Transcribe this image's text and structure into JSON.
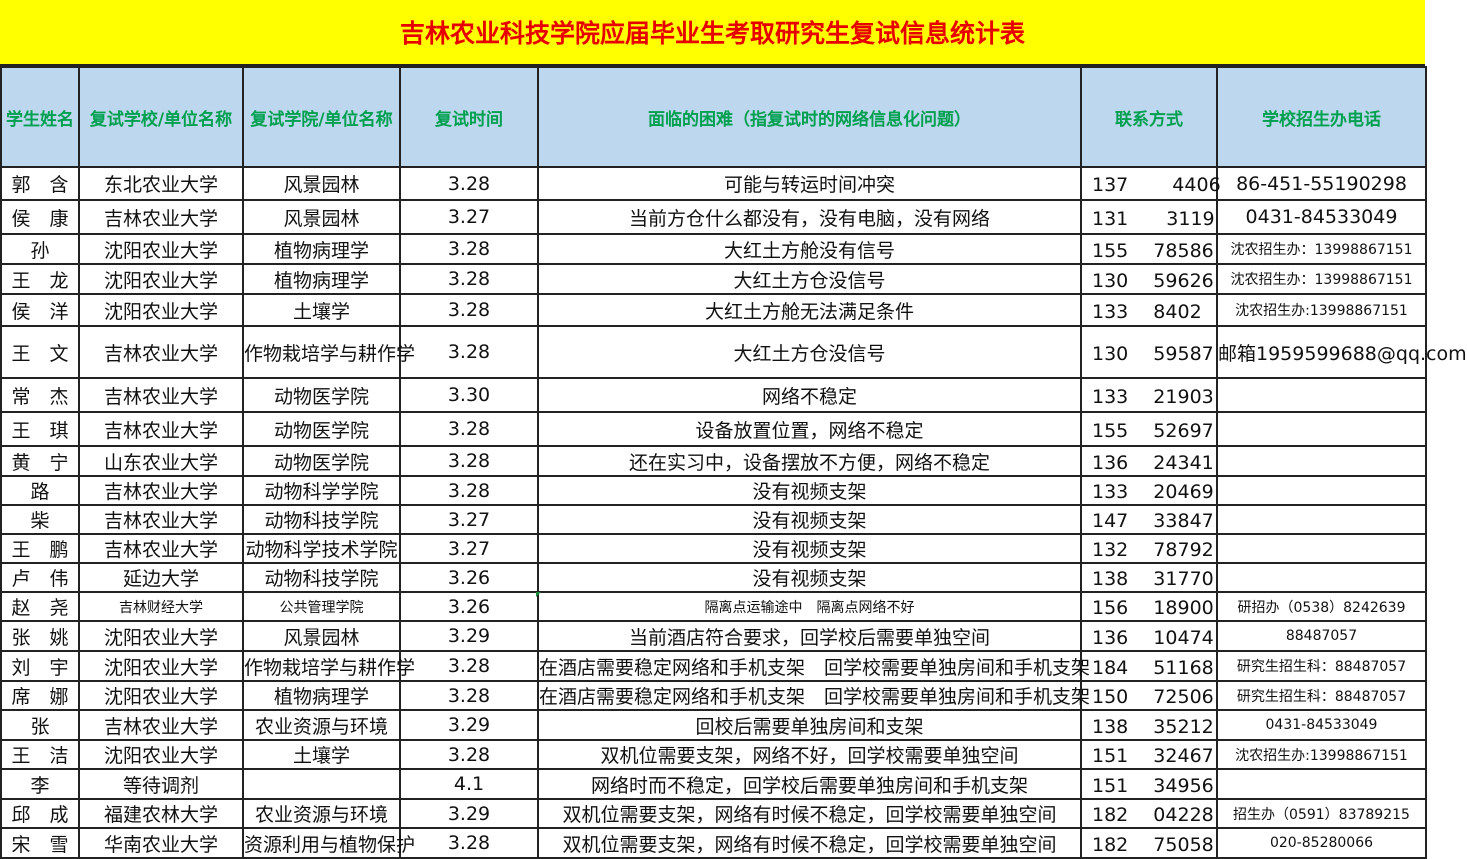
{
  "title": "吉林农业科技学院应届毕业生考取研究生复试信息统计表",
  "colors": {
    "title_bg": "#ffff00",
    "title_text": "#e60000",
    "header_bg": "#bdd7ee",
    "header_text": "#00a050"
  },
  "columns": [
    "学生姓名",
    "复试学校/单位名称",
    "复试学院/单位名称",
    "复试时间",
    "面临的困难（指复试时的网络信息化问题）",
    "联系方式",
    "学校招生办电话"
  ],
  "rows": [
    [
      "郭　含",
      "东北农业大学",
      "风景园林",
      "3.28",
      "可能与转运时间冲突",
      "137　　 4406",
      "86-451-55190298"
    ],
    [
      "侯　康",
      "吉林农业大学",
      "风景园林",
      "3.27",
      "当前方仓什么都没有，没有电脑，没有网络",
      "131　　3119",
      "0431-84533049"
    ],
    [
      "孙　",
      "沈阳农业大学",
      "植物病理学",
      "3.28",
      "大红土方舱没有信号",
      "155　 78586",
      "沈农招生办：13998867151"
    ],
    [
      "王　龙",
      "沈阳农业大学",
      "植物病理学",
      "3.28",
      "大红土方仓没信号",
      "130　 59626",
      "沈农招生办：13998867151"
    ],
    [
      "侯　洋",
      "沈阳农业大学",
      "土壤学",
      "3.28",
      "大红土方舱无法满足条件",
      "133　 8402",
      "沈农招生办:13998867151"
    ],
    [
      "王　文",
      "吉林农业大学",
      "作物栽培学与耕作学",
      "3.28",
      "大红土方仓没信号",
      "130　 59587",
      "邮箱1959599688@qq.com"
    ],
    [
      "常　杰",
      "吉林农业大学",
      "动物医学院",
      "3.30",
      "网络不稳定",
      "133　 21903",
      ""
    ],
    [
      "王　琪",
      "吉林农业大学",
      "动物医学院",
      "3.28",
      "设备放置位置，网络不稳定",
      "155　 52697",
      ""
    ],
    [
      "黄　宁",
      "山东农业大学",
      "动物医学院",
      "3.28",
      "还在实习中，设备摆放不方便，网络不稳定",
      "136　 24341",
      ""
    ],
    [
      "路　",
      "吉林农业大学",
      "动物科学学院",
      "3.28",
      "没有视频支架",
      "133　 20469",
      ""
    ],
    [
      "柴　",
      "吉林农业大学",
      "动物科技学院",
      "3.27",
      "没有视频支架",
      "147　 33847",
      ""
    ],
    [
      "王　鹏",
      "吉林农业大学",
      "动物科学技术学院",
      "3.27",
      "没有视频支架",
      "132　 78792",
      ""
    ],
    [
      "卢　伟",
      "延边大学",
      "动物科技学院",
      "3.26",
      "没有视频支架",
      "138　 31770",
      ""
    ],
    [
      "赵　尧",
      "吉林财经大学",
      "公共管理学院",
      "3.26",
      "隔离点运输途中　隔离点网络不好",
      "156　 18900",
      "研招办（0538）8242639"
    ],
    [
      "张　姚",
      "沈阳农业大学",
      "风景园林",
      "3.29",
      "当前酒店符合要求，回学校后需要单独空间",
      "136　 10474",
      "88487057"
    ],
    [
      "刘　宇",
      "沈阳农业大学",
      "作物栽培学与耕作学",
      "3.28",
      "在酒店需要稳定网络和手机支架　回学校需要单独房间和手机支架",
      "184　 51168",
      "研究生招生科：88487057"
    ],
    [
      "席　娜",
      "沈阳农业大学",
      "植物病理学",
      "3.28",
      "在酒店需要稳定网络和手机支架　回学校需要单独房间和手机支架",
      "150　 72506",
      "研究生招生科：88487057"
    ],
    [
      "张　",
      "吉林农业大学",
      "农业资源与环境",
      "3.29",
      "回校后需要单独房间和支架",
      "138　 35212",
      "0431-84533049"
    ],
    [
      "王　洁",
      "沈阳农业大学",
      "土壤学",
      "3.28",
      "双机位需要支架，网络不好，回学校需要单独空间",
      "151　 32467",
      "沈农招生办:13998867151"
    ],
    [
      "李　",
      "等待调剂",
      "",
      "4.1",
      "网络时而不稳定，回学校后需要单独房间和手机支架",
      "151　 34956",
      ""
    ],
    [
      "邱　成",
      "福建农林大学",
      "农业资源与环境",
      "3.29",
      "双机位需要支架，网络有时候不稳定，回学校需要单独空间",
      "182　 04228",
      "招生办（0591）83789215"
    ],
    [
      "宋　雪",
      "华南农业大学",
      "资源利用与植物保护",
      "3.28",
      "双机位需要支架，网络有时候不稳定，回学校需要单独空间",
      "182　 75058",
      "020-85280066"
    ]
  ]
}
